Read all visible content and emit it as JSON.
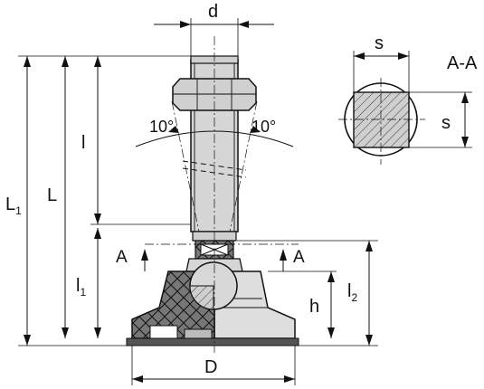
{
  "labels": {
    "d": "d",
    "L1_main": "L",
    "L1_sub": "1",
    "L": "L",
    "l": "l",
    "l1_main": "l",
    "l1_sub": "1",
    "l2_main": "l",
    "l2_sub": "2",
    "h": "h",
    "D": "D",
    "s_top": "s",
    "s_side": "s",
    "section_title": "A-A",
    "section_mark_left": "A",
    "section_mark_right": "A",
    "angle_left": "10°",
    "angle_right": "10°"
  },
  "colors": {
    "metal": "#d3d3d3",
    "metal_light": "#e6e6e6",
    "rubber": "#6e6e6e",
    "hatch": "#bbbbbb",
    "line": "#111111"
  }
}
